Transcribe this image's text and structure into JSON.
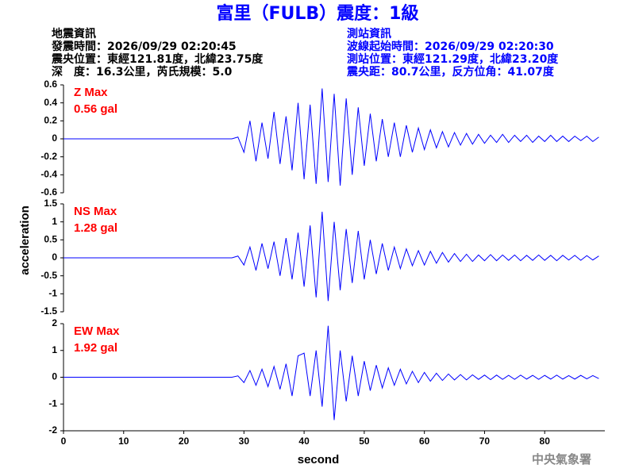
{
  "header": {
    "title": "富里（FULB）震度：1級",
    "left": [
      "地震資訊",
      "發震時間：2026/09/29 02:20:45",
      "震央位置：東經121.81度，北緯23.75度",
      "深　度：16.3公里，芮氏規模：5.0"
    ],
    "right": [
      "測站資訊",
      "波線起始時間：2026/09/29 02:20:30",
      "測站位置：東經121.29度，北緯23.20度",
      "震央距：80.7公里，反方位角：41.07度"
    ]
  },
  "y_label": "acceleration",
  "footer": "中央氣象署",
  "chart_data": [
    {
      "type": "line",
      "annotations": [
        "Z Max",
        "0.56 gal"
      ],
      "color": "#0000ff",
      "xlim": [
        0,
        90
      ],
      "ylim": [
        -0.6,
        0.6
      ],
      "yticks": [
        -0.6,
        -0.4,
        -0.2,
        0,
        0.2,
        0.4,
        0.6
      ],
      "x": [
        0,
        1,
        2,
        3,
        4,
        5,
        6,
        7,
        8,
        9,
        10,
        11,
        12,
        13,
        14,
        15,
        16,
        17,
        18,
        19,
        20,
        21,
        22,
        23,
        24,
        25,
        26,
        27,
        28,
        29,
        30,
        31,
        32,
        33,
        34,
        35,
        36,
        37,
        38,
        39,
        40,
        41,
        42,
        43,
        44,
        45,
        46,
        47,
        48,
        49,
        50,
        51,
        52,
        53,
        54,
        55,
        56,
        57,
        58,
        59,
        60,
        61,
        62,
        63,
        64,
        65,
        66,
        67,
        68,
        69,
        70,
        71,
        72,
        73,
        74,
        75,
        76,
        77,
        78,
        79,
        80,
        81,
        82,
        83,
        84,
        85,
        86,
        87,
        88,
        89
      ],
      "values": [
        0,
        0,
        0,
        0,
        0,
        0,
        0,
        0,
        0,
        0,
        0,
        0,
        0,
        0,
        0,
        0,
        0,
        0,
        0,
        0,
        0,
        0,
        0,
        0,
        0,
        0,
        0,
        0,
        0,
        0.02,
        -0.15,
        0.2,
        -0.25,
        0.18,
        -0.22,
        0.3,
        -0.28,
        0.25,
        -0.35,
        0.4,
        -0.45,
        0.38,
        -0.5,
        0.56,
        -0.48,
        0.5,
        -0.52,
        0.45,
        -0.4,
        0.35,
        -0.3,
        0.28,
        -0.25,
        0.22,
        -0.2,
        0.18,
        -0.2,
        0.15,
        -0.15,
        0.12,
        -0.12,
        0.1,
        -0.1,
        0.08,
        -0.09,
        0.07,
        -0.07,
        0.06,
        -0.06,
        0.05,
        -0.05,
        0.04,
        -0.04,
        0.05,
        -0.04,
        0.04,
        -0.03,
        0.04,
        -0.04,
        0.03,
        -0.03,
        0.04,
        -0.03,
        0.03,
        -0.03,
        0.03,
        -0.02,
        0.03,
        -0.03,
        0.02
      ]
    },
    {
      "type": "line",
      "annotations": [
        "NS Max",
        "1.28 gal"
      ],
      "color": "#0000ff",
      "xlim": [
        0,
        90
      ],
      "ylim": [
        -1.5,
        1.5
      ],
      "yticks": [
        -1.5,
        -1,
        -0.5,
        0,
        0.5,
        1,
        1.5
      ],
      "x": [
        0,
        1,
        2,
        3,
        4,
        5,
        6,
        7,
        8,
        9,
        10,
        11,
        12,
        13,
        14,
        15,
        16,
        17,
        18,
        19,
        20,
        21,
        22,
        23,
        24,
        25,
        26,
        27,
        28,
        29,
        30,
        31,
        32,
        33,
        34,
        35,
        36,
        37,
        38,
        39,
        40,
        41,
        42,
        43,
        44,
        45,
        46,
        47,
        48,
        49,
        50,
        51,
        52,
        53,
        54,
        55,
        56,
        57,
        58,
        59,
        60,
        61,
        62,
        63,
        64,
        65,
        66,
        67,
        68,
        69,
        70,
        71,
        72,
        73,
        74,
        75,
        76,
        77,
        78,
        79,
        80,
        81,
        82,
        83,
        84,
        85,
        86,
        87,
        88,
        89
      ],
      "values": [
        0,
        0,
        0,
        0,
        0,
        0,
        0,
        0,
        0,
        0,
        0,
        0,
        0,
        0,
        0,
        0,
        0,
        0,
        0,
        0,
        0,
        0,
        0,
        0,
        0,
        0,
        0,
        0,
        0,
        0.05,
        -0.2,
        0.3,
        -0.35,
        0.4,
        -0.3,
        0.45,
        -0.5,
        0.55,
        -0.6,
        0.7,
        -0.8,
        0.9,
        -1.1,
        1.28,
        -1.2,
        1.0,
        -0.9,
        0.8,
        -0.7,
        0.75,
        -0.6,
        0.5,
        -0.45,
        0.4,
        -0.35,
        0.3,
        -0.3,
        0.25,
        -0.22,
        0.2,
        -0.2,
        0.18,
        -0.15,
        0.15,
        -0.12,
        0.12,
        -0.1,
        0.1,
        -0.1,
        0.08,
        -0.08,
        0.09,
        -0.08,
        0.08,
        -0.07,
        0.08,
        -0.08,
        0.07,
        -0.07,
        0.08,
        -0.07,
        0.07,
        -0.08,
        0.07,
        -0.06,
        0.07,
        -0.07,
        0.06,
        -0.06,
        0.05
      ]
    },
    {
      "type": "line",
      "annotations": [
        "EW Max",
        "1.92 gal"
      ],
      "color": "#0000ff",
      "xlim": [
        0,
        90
      ],
      "ylim": [
        -2,
        2
      ],
      "yticks": [
        -2,
        -1,
        0,
        1,
        2
      ],
      "xticks": [
        0,
        10,
        20,
        30,
        40,
        50,
        60,
        70,
        80
      ],
      "x_label": "second",
      "x": [
        0,
        1,
        2,
        3,
        4,
        5,
        6,
        7,
        8,
        9,
        10,
        11,
        12,
        13,
        14,
        15,
        16,
        17,
        18,
        19,
        20,
        21,
        22,
        23,
        24,
        25,
        26,
        27,
        28,
        29,
        30,
        31,
        32,
        33,
        34,
        35,
        36,
        37,
        38,
        39,
        40,
        41,
        42,
        43,
        44,
        45,
        46,
        47,
        48,
        49,
        50,
        51,
        52,
        53,
        54,
        55,
        56,
        57,
        58,
        59,
        60,
        61,
        62,
        63,
        64,
        65,
        66,
        67,
        68,
        69,
        70,
        71,
        72,
        73,
        74,
        75,
        76,
        77,
        78,
        79,
        80,
        81,
        82,
        83,
        84,
        85,
        86,
        87,
        88,
        89
      ],
      "values": [
        0,
        0,
        0,
        0,
        0,
        0,
        0,
        0,
        0,
        0,
        0,
        0,
        0,
        0,
        0,
        0,
        0,
        0,
        0,
        0,
        0,
        0,
        0,
        0,
        0,
        0,
        0,
        0,
        0,
        0.05,
        -0.2,
        0.25,
        -0.3,
        0.3,
        -0.35,
        0.4,
        -0.45,
        0.5,
        -0.7,
        0.8,
        0.9,
        -0.7,
        1.0,
        -1.1,
        1.92,
        -1.6,
        1.0,
        -0.9,
        0.8,
        -0.7,
        0.6,
        -0.5,
        0.45,
        -0.4,
        0.35,
        -0.3,
        0.3,
        -0.25,
        0.22,
        -0.2,
        0.18,
        -0.15,
        0.15,
        -0.12,
        0.12,
        -0.1,
        0.1,
        -0.1,
        0.09,
        -0.08,
        0.08,
        -0.09,
        0.08,
        -0.08,
        0.07,
        -0.08,
        0.08,
        -0.07,
        0.07,
        -0.08,
        0.07,
        -0.07,
        0.08,
        -0.07,
        0.06,
        -0.07,
        0.07,
        -0.06,
        0.06,
        -0.05
      ]
    }
  ]
}
